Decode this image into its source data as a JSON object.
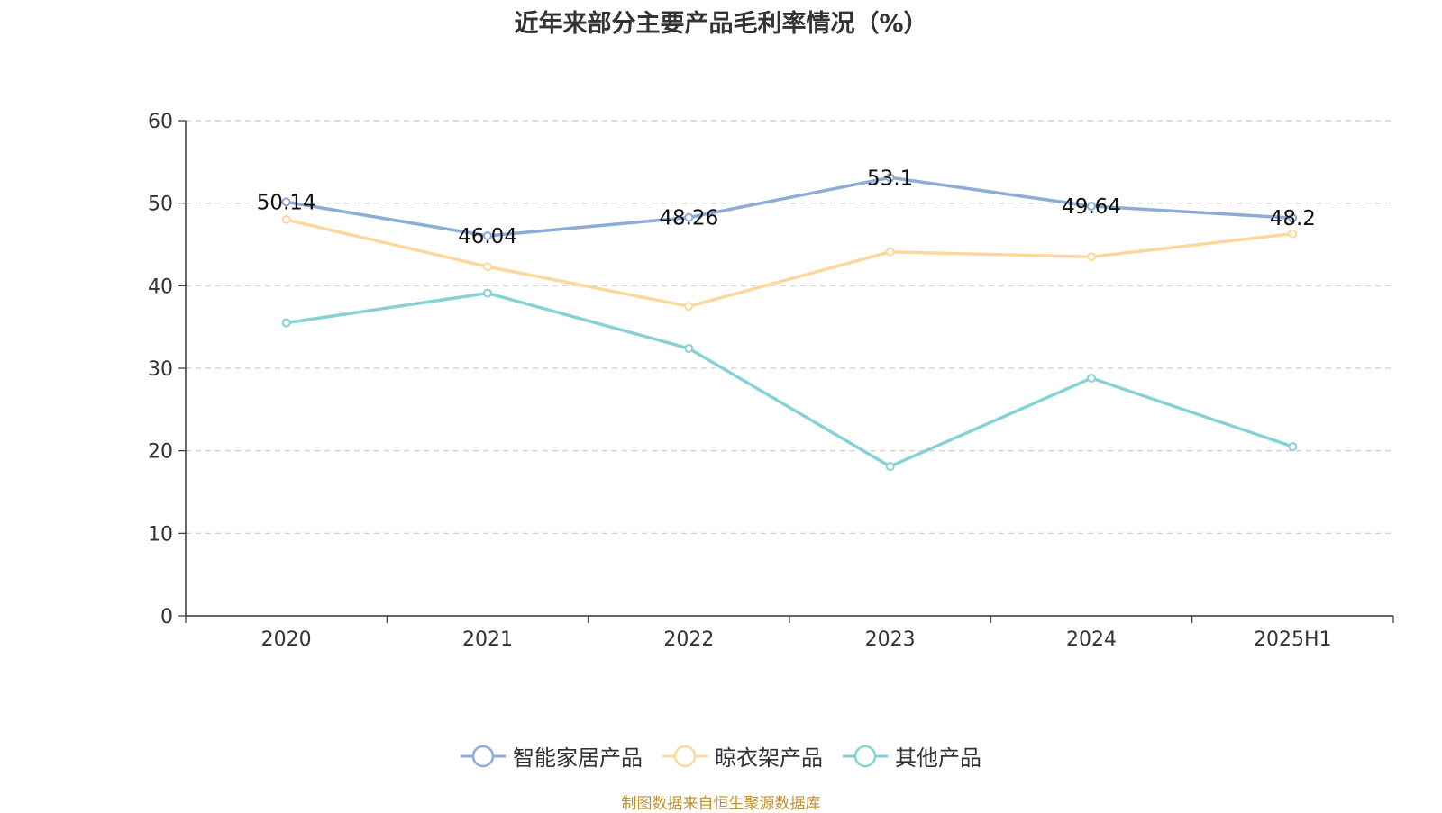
{
  "chart_data": {
    "type": "line",
    "title": "近年来部分主要产品毛利率情况（%）",
    "categories": [
      "2020",
      "2021",
      "2022",
      "2023",
      "2024",
      "2025H1"
    ],
    "ylim": [
      0,
      60
    ],
    "yticks": [
      0,
      10,
      20,
      30,
      40,
      50,
      60
    ],
    "grid": true,
    "legend_position": "bottom",
    "series": [
      {
        "name": "智能家居产品",
        "color": "#8fabd8",
        "values": [
          50.14,
          46.04,
          48.26,
          53.1,
          49.64,
          48.2
        ],
        "labels": [
          "50.14",
          "46.04",
          "48.26",
          "53.1",
          "49.64",
          "48.2"
        ]
      },
      {
        "name": "晾衣架产品",
        "color": "#fbd99c",
        "values": [
          48.0,
          42.3,
          37.5,
          44.1,
          43.5,
          46.3
        ]
      },
      {
        "name": "其他产品",
        "color": "#86d2d6",
        "values": [
          35.5,
          39.1,
          32.4,
          18.1,
          28.8,
          20.5
        ]
      }
    ],
    "source": "制图数据来自恒生聚源数据库"
  }
}
